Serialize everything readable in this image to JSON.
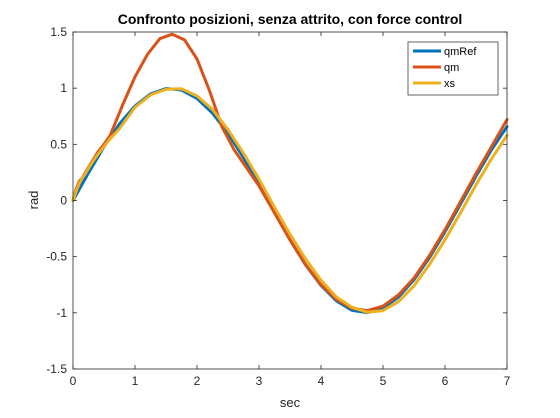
{
  "chart_data": {
    "type": "line",
    "title": "Confronto posizioni, senza attrito, con force control",
    "xlabel": "sec",
    "ylabel": "rad",
    "xlim": [
      0,
      7
    ],
    "ylim": [
      -1.5,
      1.5
    ],
    "xticks": [
      0,
      1,
      2,
      3,
      4,
      5,
      6,
      7
    ],
    "xtick_labels": [
      "0",
      "1",
      "2",
      "3",
      "4",
      "5",
      "6",
      "7"
    ],
    "yticks": [
      -1.5,
      -1,
      -0.5,
      0,
      0.5,
      1,
      1.5
    ],
    "ytick_labels": [
      "-1.5",
      "-1",
      "-0.5",
      "0",
      "0.5",
      "1",
      "1.5"
    ],
    "grid": false,
    "legend_position": "top-right",
    "series": [
      {
        "name": "qmRef",
        "color": "#0072BD",
        "x": [
          0,
          0.25,
          0.5,
          0.75,
          1.0,
          1.25,
          1.5,
          1.75,
          2.0,
          2.25,
          2.5,
          2.75,
          3.0,
          3.25,
          3.5,
          3.75,
          4.0,
          4.25,
          4.5,
          4.75,
          5.0,
          5.25,
          5.5,
          5.75,
          6.0,
          6.25,
          6.5,
          6.75,
          7.0
        ],
        "y": [
          0,
          0.247,
          0.479,
          0.682,
          0.841,
          0.949,
          0.997,
          0.984,
          0.909,
          0.778,
          0.598,
          0.382,
          0.141,
          -0.108,
          -0.351,
          -0.572,
          -0.757,
          -0.895,
          -0.978,
          -0.999,
          -0.959,
          -0.859,
          -0.706,
          -0.508,
          -0.279,
          -0.033,
          0.215,
          0.451,
          0.657
        ]
      },
      {
        "name": "qm",
        "color": "#D95319",
        "x": [
          0,
          0.05,
          0.1,
          0.15,
          0.2,
          0.3,
          0.4,
          0.5,
          0.6,
          0.8,
          1.0,
          1.2,
          1.4,
          1.6,
          1.8,
          2.0,
          2.2,
          2.4,
          2.6,
          2.75,
          3.0,
          3.25,
          3.5,
          3.75,
          4.0,
          4.25,
          4.5,
          4.75,
          5.0,
          5.25,
          5.5,
          5.75,
          6.0,
          6.25,
          6.5,
          6.75,
          7.0
        ],
        "y": [
          0,
          0.1,
          0.17,
          0.2,
          0.25,
          0.34,
          0.43,
          0.5,
          0.58,
          0.85,
          1.1,
          1.3,
          1.44,
          1.48,
          1.43,
          1.26,
          0.98,
          0.66,
          0.45,
          0.33,
          0.13,
          -0.11,
          -0.35,
          -0.57,
          -0.75,
          -0.88,
          -0.96,
          -0.98,
          -0.94,
          -0.84,
          -0.69,
          -0.49,
          -0.26,
          -0.01,
          0.24,
          0.48,
          0.72
        ]
      },
      {
        "name": "xs",
        "color": "#EDB120",
        "x": [
          0,
          0.05,
          0.1,
          0.15,
          0.2,
          0.3,
          0.4,
          0.5,
          0.6,
          0.75,
          1.0,
          1.25,
          1.5,
          1.75,
          2.0,
          2.25,
          2.5,
          2.75,
          3.0,
          3.25,
          3.5,
          3.75,
          4.0,
          4.25,
          4.5,
          4.75,
          5.0,
          5.25,
          5.5,
          5.75,
          6.0,
          6.25,
          6.5,
          6.75,
          7.0
        ],
        "y": [
          0,
          0.08,
          0.15,
          0.2,
          0.24,
          0.33,
          0.41,
          0.48,
          0.55,
          0.64,
          0.83,
          0.94,
          0.99,
          0.995,
          0.93,
          0.81,
          0.63,
          0.42,
          0.19,
          -0.06,
          -0.3,
          -0.52,
          -0.71,
          -0.86,
          -0.95,
          -0.995,
          -0.98,
          -0.9,
          -0.76,
          -0.57,
          -0.35,
          -0.11,
          0.14,
          0.37,
          0.58
        ]
      }
    ]
  }
}
